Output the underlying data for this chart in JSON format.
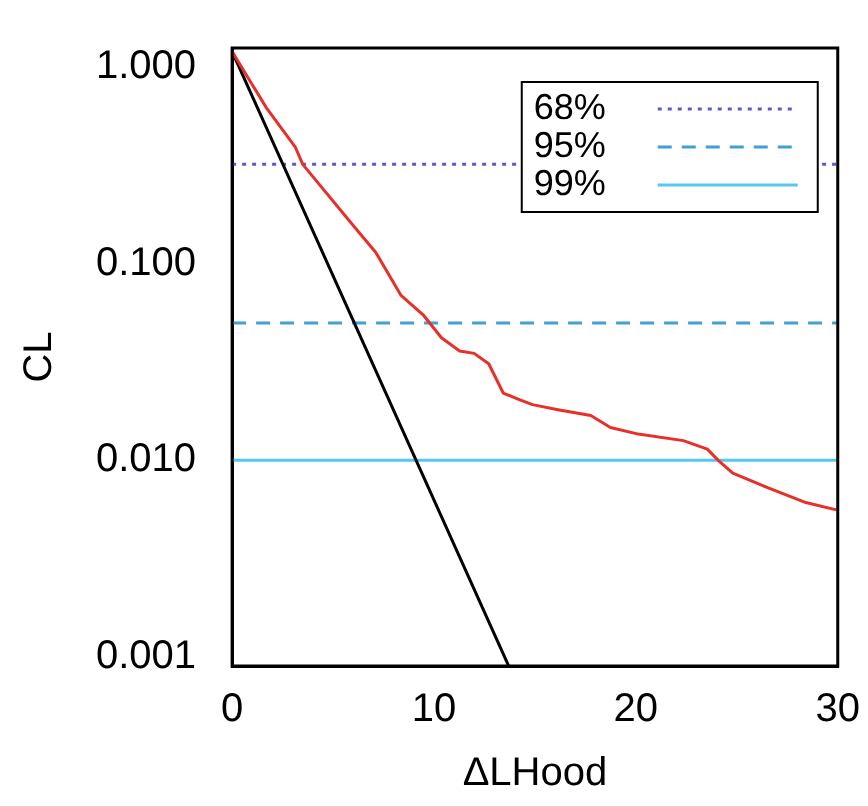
{
  "chart_data": {
    "type": "line",
    "xlabel": "ΔLHood",
    "ylabel": "CL",
    "log": "y",
    "grid": false,
    "legend": "top right",
    "marker": "none",
    "xlim": [
      0,
      30
    ],
    "xticks": [
      0,
      10,
      20,
      30
    ],
    "ylim": [
      0.0009,
      1.25
    ],
    "yticks": [
      {
        "value": 1,
        "label": "1.000"
      },
      {
        "value": 0.1,
        "label": "0.100"
      },
      {
        "value": 0.01,
        "label": "0.010"
      },
      {
        "value": 0.001,
        "label": "0.001"
      }
    ],
    "series": [
      {
        "color": "#e8302a",
        "x": [
          0,
          1.7,
          3.14,
          3.5,
          6.03,
          7.12,
          8.37,
          9.46,
          10.37,
          11.27,
          11.99,
          12.71,
          13.08,
          13.43,
          14.16,
          14.88,
          16.14,
          17.77,
          18.74,
          20.12,
          22.35,
          23.54,
          24.08,
          24.8,
          26.62,
          28.42,
          29.93
        ],
        "values": [
          1.2,
          0.62,
          0.39,
          0.32,
          0.155,
          0.114,
          0.069,
          0.055,
          0.042,
          0.036,
          0.035,
          0.031,
          0.026,
          0.022,
          0.0205,
          0.0192,
          0.0181,
          0.0169,
          0.0147,
          0.0136,
          0.0126,
          0.0114,
          0.01,
          0.0086,
          0.0072,
          0.0061,
          0.0056
        ]
      },
      {
        "color": "#000000",
        "x": [
          0,
          13.7
        ],
        "values": [
          1.2,
          0.0009
        ]
      },
      {
        "name": "68%",
        "color": "#5a5ad0",
        "line_style": "dotted",
        "x": [
          0,
          30
        ],
        "values": [
          0.32,
          0.32
        ]
      },
      {
        "name": "95%",
        "color": "#3f9fd8",
        "line_style": "dashed",
        "x": [
          0,
          30
        ],
        "values": [
          0.05,
          0.05
        ]
      },
      {
        "name": "99%",
        "color": "#55c8f0",
        "line_style": "solid",
        "x": [
          0,
          30
        ],
        "values": [
          0.01,
          0.01
        ]
      }
    ]
  }
}
